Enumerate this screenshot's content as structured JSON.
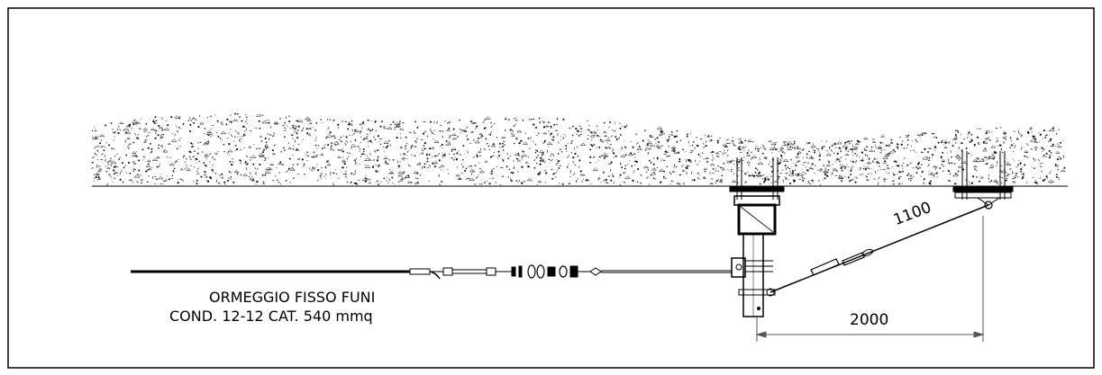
{
  "label": {
    "line1": "ORMEGGIO FISSO FUNI",
    "line2": "COND. 12-12 CAT. 540 mmq"
  },
  "dimensions": {
    "horizontal": "2000",
    "diagonal": "1100"
  },
  "colors": {
    "line": "#000000",
    "dimension": "#555555",
    "background": "#ffffff"
  }
}
